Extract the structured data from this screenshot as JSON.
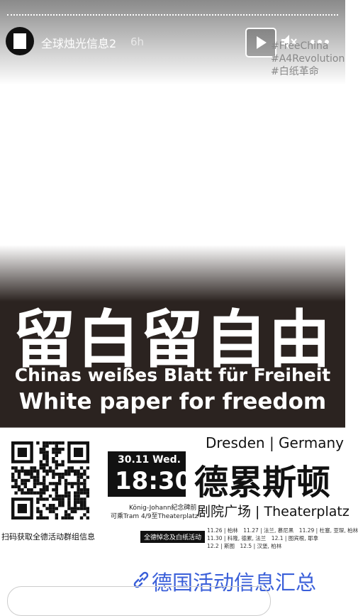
{
  "header": {
    "username": "全球烛光信息2",
    "time": "6h"
  },
  "hashtags": [
    "#FreeChina",
    "#A4Revolution",
    "#白纸革命"
  ],
  "poster": {
    "title": "留白留自由",
    "subtitle_de": "Chinas weißes Blatt für Freiheit",
    "subtitle_en": "White paper for freedom",
    "location": "Dresden | Germany",
    "date": "30.11 Wed.",
    "time": "18:30",
    "city_zh": "德累斯顿",
    "meeting_point": "König-Johann紀念碑前",
    "transport": "可乘Tram 4/9至Theaterplatz",
    "venue": "剧院广场 | Theaterplatz",
    "qr_caption": "扫码获取全德活动群组信息",
    "schedule_title": "全德悼念及白纸活动",
    "schedule": [
      "11.26 | 柏林　11.27 | 法兰, 慕尼黑　11.29 | 杜塞, 亚琛, 柏林",
      "11.30 | 科隆, 德累, 法兰　12.1 | 图宾根, 耶拿",
      "12.2 | 斯图　12.5 | 汉堡, 柏林"
    ]
  },
  "link_sticker": "德国活动信息汇总"
}
